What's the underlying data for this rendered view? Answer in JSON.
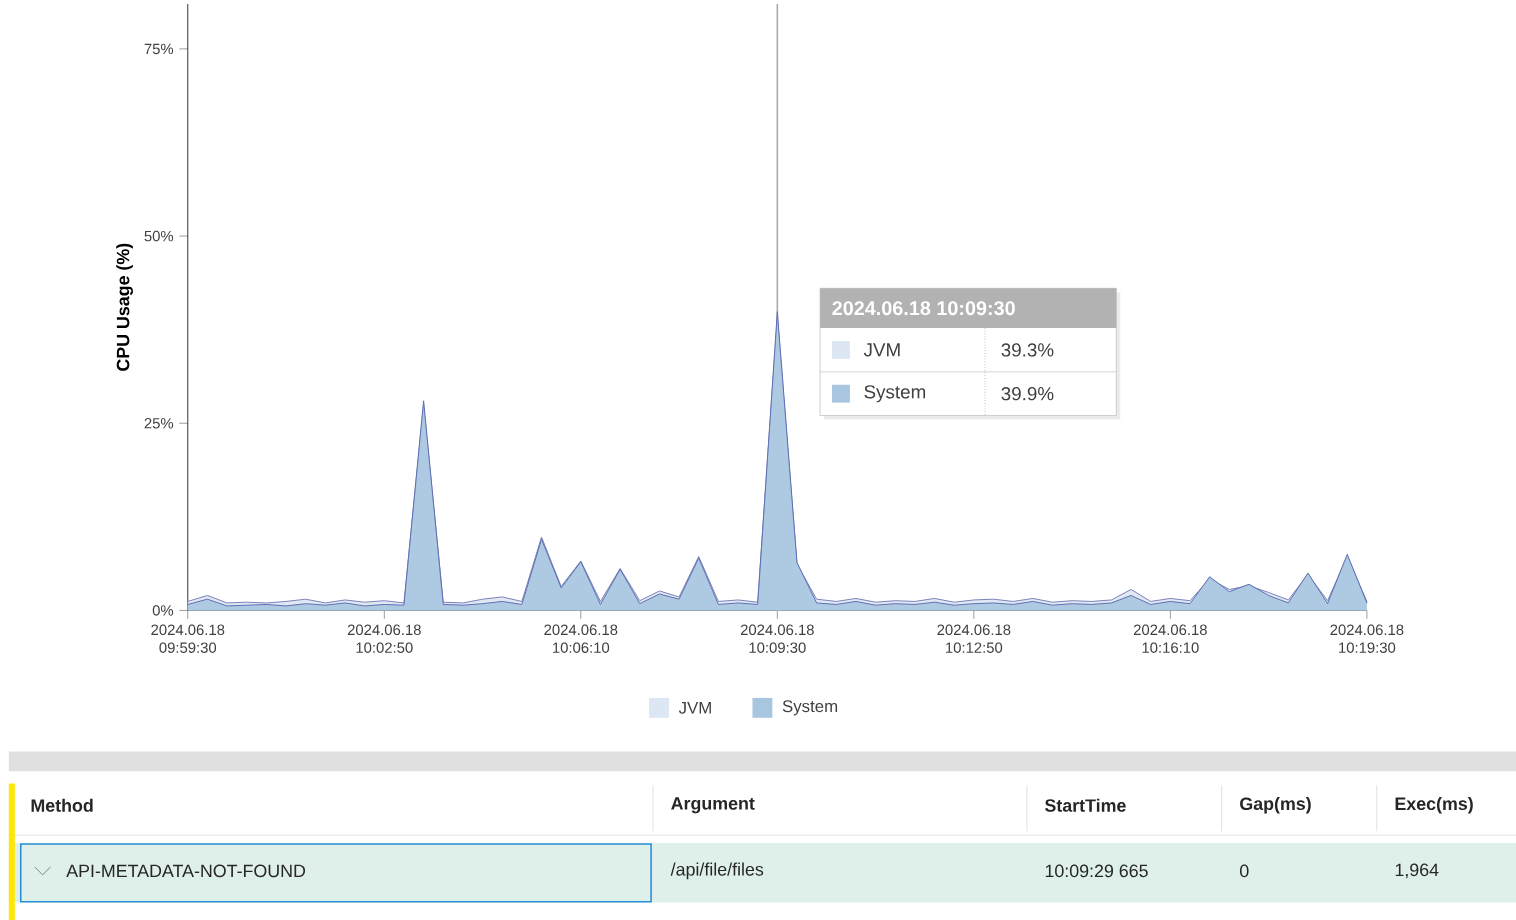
{
  "chart_data": {
    "type": "area",
    "ylabel": "CPU Usage (%)",
    "x": [
      "2024-06-18T09:59:30",
      "2024-06-18T09:59:50",
      "2024-06-18T10:00:10",
      "2024-06-18T10:00:30",
      "2024-06-18T10:00:50",
      "2024-06-18T10:01:10",
      "2024-06-18T10:01:30",
      "2024-06-18T10:01:50",
      "2024-06-18T10:02:10",
      "2024-06-18T10:02:30",
      "2024-06-18T10:02:50",
      "2024-06-18T10:03:10",
      "2024-06-18T10:03:30",
      "2024-06-18T10:03:50",
      "2024-06-18T10:04:10",
      "2024-06-18T10:04:30",
      "2024-06-18T10:04:50",
      "2024-06-18T10:05:10",
      "2024-06-18T10:05:30",
      "2024-06-18T10:05:50",
      "2024-06-18T10:06:10",
      "2024-06-18T10:06:30",
      "2024-06-18T10:06:50",
      "2024-06-18T10:07:10",
      "2024-06-18T10:07:30",
      "2024-06-18T10:07:50",
      "2024-06-18T10:08:10",
      "2024-06-18T10:08:30",
      "2024-06-18T10:08:50",
      "2024-06-18T10:09:10",
      "2024-06-18T10:09:30",
      "2024-06-18T10:09:50",
      "2024-06-18T10:10:10",
      "2024-06-18T10:10:30",
      "2024-06-18T10:10:50",
      "2024-06-18T10:11:10",
      "2024-06-18T10:11:30",
      "2024-06-18T10:11:50",
      "2024-06-18T10:12:10",
      "2024-06-18T10:12:30",
      "2024-06-18T10:12:50",
      "2024-06-18T10:13:10",
      "2024-06-18T10:13:30",
      "2024-06-18T10:13:50",
      "2024-06-18T10:14:10",
      "2024-06-18T10:14:30",
      "2024-06-18T10:14:50",
      "2024-06-18T10:15:10",
      "2024-06-18T10:15:30",
      "2024-06-18T10:15:50",
      "2024-06-18T10:16:10",
      "2024-06-18T10:16:30",
      "2024-06-18T10:16:50",
      "2024-06-18T10:17:10",
      "2024-06-18T10:17:30",
      "2024-06-18T10:17:50",
      "2024-06-18T10:18:10",
      "2024-06-18T10:18:30",
      "2024-06-18T10:18:50",
      "2024-06-18T10:19:10",
      "2024-06-18T10:19:30"
    ],
    "series": [
      {
        "name": "JVM",
        "color": "#dde6f3",
        "values": [
          1.2,
          2.0,
          1.0,
          1.1,
          1.0,
          1.2,
          1.5,
          1.0,
          1.4,
          1.1,
          1.3,
          1.0,
          27.5,
          1.1,
          1.0,
          1.5,
          1.8,
          1.2,
          9.8,
          3.2,
          6.6,
          1.2,
          5.6,
          1.3,
          2.6,
          1.8,
          7.2,
          1.2,
          1.4,
          1.1,
          39.3,
          6.2,
          1.5,
          1.2,
          1.6,
          1.1,
          1.3,
          1.2,
          1.6,
          1.1,
          1.4,
          1.5,
          1.2,
          1.6,
          1.1,
          1.3,
          1.2,
          1.4,
          2.8,
          1.2,
          1.6,
          1.3,
          4.2,
          2.8,
          3.3,
          2.4,
          1.4,
          4.8,
          1.3,
          7.2,
          1.2
        ]
      },
      {
        "name": "System",
        "color": "#a9c6e0",
        "values": [
          0.8,
          1.5,
          0.6,
          0.7,
          0.8,
          0.6,
          0.9,
          0.7,
          1.0,
          0.6,
          0.8,
          0.7,
          28,
          0.8,
          0.7,
          0.9,
          1.2,
          0.8,
          9.5,
          3,
          6.5,
          0.8,
          5.5,
          0.9,
          2.2,
          1.5,
          7,
          0.8,
          1.0,
          0.8,
          39.9,
          6.4,
          1.0,
          0.8,
          1.2,
          0.7,
          0.9,
          0.8,
          1.1,
          0.7,
          0.9,
          1.0,
          0.8,
          1.2,
          0.7,
          0.9,
          0.8,
          1.0,
          2,
          0.8,
          1.2,
          0.9,
          4.5,
          2.5,
          3.5,
          2,
          1.0,
          5,
          0.9,
          7.5,
          1.0
        ]
      }
    ],
    "xlim": [
      "2024-06-18T09:59:30",
      "2024-06-18T10:19:30"
    ],
    "xticks": [
      {
        "value": "2024-06-18T09:59:30",
        "label": "2024.06.18 09:59:30"
      },
      {
        "value": "2024-06-18T10:02:50",
        "label": "2024.06.18 10:02:50"
      },
      {
        "value": "2024-06-18T10:06:10",
        "label": "2024.06.18 10:06:10"
      },
      {
        "value": "2024-06-18T10:09:30",
        "label": "2024.06.18 10:09:30"
      },
      {
        "value": "2024-06-18T10:12:50",
        "label": "2024.06.18 10:12:50"
      },
      {
        "value": "2024-06-18T10:16:10",
        "label": "2024.06.18 10:16:10"
      },
      {
        "value": "2024-06-18T10:19:30",
        "label": "2024.06.18 10:19:30"
      }
    ],
    "ylim": [
      0,
      81
    ],
    "yticks": [
      {
        "value": 0,
        "label": "0%"
      },
      {
        "value": 25,
        "label": "25%"
      },
      {
        "value": 50,
        "label": "50%"
      },
      {
        "value": 75,
        "label": "75%"
      }
    ],
    "ref_lines": [
      {
        "axis": "x",
        "value": "2024-06-18T10:09:30",
        "color": "#aaaaaa"
      }
    ],
    "legend": "bottom",
    "marker": "none",
    "grid": false,
    "annotations": [
      "2024.06.18 10:09:30",
      "39.3%",
      "39.9%",
      "Method",
      "Argument",
      "StartTime",
      "Gap(ms)",
      "Exec(ms)",
      "API-METADATA-NOT-FOUND",
      "/api/file/files",
      "10:09:29 665",
      "0",
      "1,964"
    ]
  }
}
